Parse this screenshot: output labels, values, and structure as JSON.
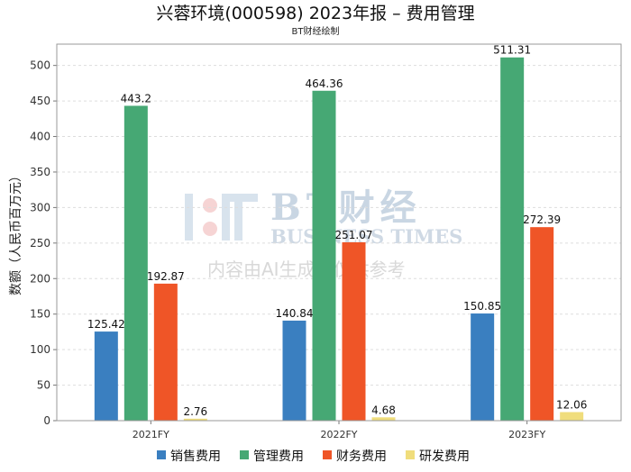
{
  "chart_data": {
    "type": "bar",
    "title": "兴蓉环境(000598) 2023年报 – 费用管理",
    "subtitle": "BT财经绘制",
    "ylabel": "数额（人民币百万元）",
    "ylim": [
      0,
      530
    ],
    "yticks": [
      0,
      50,
      100,
      150,
      200,
      250,
      300,
      350,
      400,
      450,
      500
    ],
    "grid": true,
    "legend_position": "bottom",
    "categories": [
      "2021FY",
      "2022FY",
      "2023FY"
    ],
    "series": [
      {
        "name": "销售费用",
        "color": "#3a7fc0",
        "values": [
          125.42,
          140.84,
          150.85
        ],
        "labels": [
          "125.42",
          "140.84",
          "150.85"
        ]
      },
      {
        "name": "管理费用",
        "color": "#46a874",
        "values": [
          443.2,
          464.36,
          511.31
        ],
        "labels": [
          "443.2",
          "464.36",
          "511.31"
        ]
      },
      {
        "name": "财务费用",
        "color": "#ef5527",
        "values": [
          192.87,
          251.07,
          272.39
        ],
        "labels": [
          "192.87",
          "251.07",
          "272.39"
        ]
      },
      {
        "name": "研发费用",
        "color": "#f0dd7c",
        "values": [
          2.76,
          4.68,
          12.06
        ],
        "labels": [
          "2.76",
          "4.68",
          "12.06"
        ]
      }
    ]
  },
  "watermark": {
    "brand": "BT财经",
    "english": "BUSINESS TIMES",
    "note": "内容由AI生成，仅供参考"
  }
}
